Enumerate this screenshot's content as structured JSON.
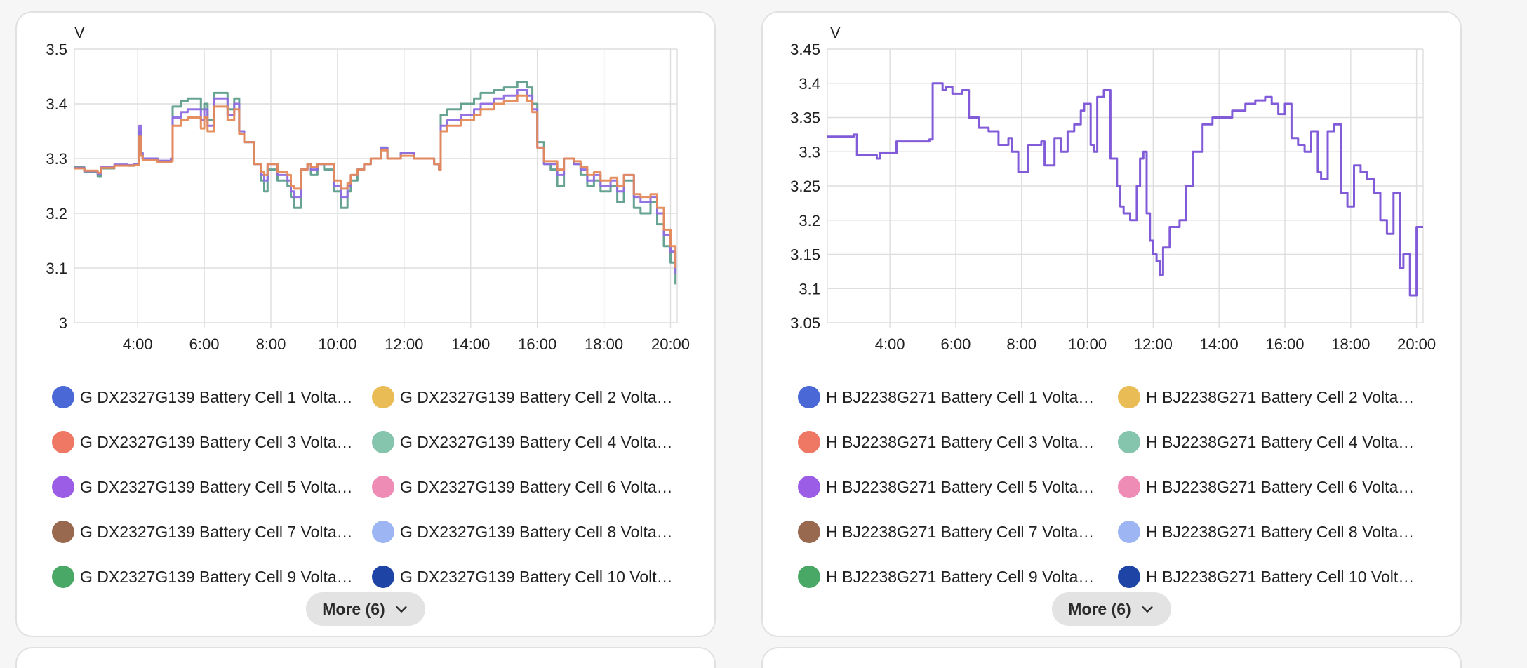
{
  "cards": [
    {
      "unit_label": "V",
      "more_button": "More (6)",
      "legend": [
        {
          "label": "G DX2327G139 Battery Cell 1 Volta…",
          "color": "#4a69d6"
        },
        {
          "label": "G DX2327G139 Battery Cell 2 Volta…",
          "color": "#eabc55"
        },
        {
          "label": "G DX2327G139 Battery Cell 3 Volta…",
          "color": "#ef7864"
        },
        {
          "label": "G DX2327G139 Battery Cell 4 Volta…",
          "color": "#85c4ad"
        },
        {
          "label": "G DX2327G139 Battery Cell 5 Volta…",
          "color": "#9b5de5"
        },
        {
          "label": "G DX2327G139 Battery Cell 6 Volta…",
          "color": "#ee8cb6"
        },
        {
          "label": "G DX2327G139 Battery Cell 7 Volta…",
          "color": "#98694e"
        },
        {
          "label": "G DX2327G139 Battery Cell 8 Volta…",
          "color": "#9db5f2"
        },
        {
          "label": "G DX2327G139 Battery Cell 9 Volta…",
          "color": "#4aa866"
        },
        {
          "label": "G DX2327G139 Battery Cell 10 Volt…",
          "color": "#1e44a6"
        }
      ]
    },
    {
      "unit_label": "V",
      "more_button": "More (6)",
      "legend": [
        {
          "label": "H BJ2238G271 Battery Cell 1 Volta…",
          "color": "#4a69d6"
        },
        {
          "label": "H BJ2238G271 Battery Cell 2 Volta…",
          "color": "#eabc55"
        },
        {
          "label": "H BJ2238G271 Battery Cell 3 Volta…",
          "color": "#ef7864"
        },
        {
          "label": "H BJ2238G271 Battery Cell 4 Volta…",
          "color": "#85c4ad"
        },
        {
          "label": "H BJ2238G271 Battery Cell 5 Volta…",
          "color": "#9b5de5"
        },
        {
          "label": "H BJ2238G271 Battery Cell 6 Volta…",
          "color": "#ee8cb6"
        },
        {
          "label": "H BJ2238G271 Battery Cell 7 Volta…",
          "color": "#98694e"
        },
        {
          "label": "H BJ2238G271 Battery Cell 8 Volta…",
          "color": "#9db5f2"
        },
        {
          "label": "H BJ2238G271 Battery Cell 9 Volta…",
          "color": "#4aa866"
        },
        {
          "label": "H BJ2238G271 Battery Cell 10 Volt…",
          "color": "#1e44a6"
        }
      ]
    }
  ],
  "chart_data": [
    {
      "type": "line",
      "ylabel": "V",
      "ylim": [
        3.0,
        3.5
      ],
      "yticks": [
        "3",
        "3.1",
        "3.2",
        "3.3",
        "3.4",
        "3.5"
      ],
      "xlim_hours": [
        2.1,
        20.2
      ],
      "xticks": [
        "4:00",
        "6:00",
        "8:00",
        "10:00",
        "12:00",
        "14:00",
        "16:00",
        "18:00",
        "20:00"
      ],
      "grid": true,
      "step": true,
      "series": [
        {
          "name": "G DX2327G139 Battery Cell 1 Volta…",
          "color": "#5f9e8c",
          "x": [
            2.1,
            2.4,
            2.8,
            2.9,
            3.3,
            3.7,
            3.9,
            4.05,
            4.1,
            4.15,
            4.6,
            5.0,
            5.05,
            5.3,
            5.5,
            5.9,
            6.0,
            6.1,
            6.3,
            6.6,
            6.7,
            6.9,
            7.05,
            7.2,
            7.5,
            7.7,
            7.8,
            7.9,
            8.2,
            8.5,
            8.6,
            8.7,
            8.9,
            9.1,
            9.2,
            9.4,
            9.6,
            9.9,
            10.1,
            10.3,
            10.4,
            10.6,
            10.8,
            11.0,
            11.3,
            11.5,
            11.7,
            11.9,
            12.3,
            12.6,
            12.9,
            13.05,
            13.1,
            13.3,
            13.7,
            14.1,
            14.3,
            14.7,
            15.0,
            15.4,
            15.7,
            15.85,
            16.0,
            16.2,
            16.4,
            16.6,
            16.8,
            17.1,
            17.3,
            17.5,
            17.7,
            17.9,
            18.2,
            18.4,
            18.6,
            18.9,
            19.1,
            19.4,
            19.6,
            19.8,
            20.0,
            20.15
          ],
          "y": [
            3.284,
            3.276,
            3.268,
            3.282,
            3.288,
            3.287,
            3.29,
            3.35,
            3.31,
            3.3,
            3.295,
            3.3,
            3.395,
            3.405,
            3.41,
            3.39,
            3.4,
            3.37,
            3.42,
            3.42,
            3.39,
            3.41,
            3.35,
            3.33,
            3.29,
            3.26,
            3.24,
            3.28,
            3.26,
            3.25,
            3.23,
            3.21,
            3.28,
            3.29,
            3.27,
            3.29,
            3.28,
            3.24,
            3.21,
            3.24,
            3.26,
            3.28,
            3.29,
            3.3,
            3.32,
            3.3,
            3.3,
            3.31,
            3.3,
            3.3,
            3.29,
            3.28,
            3.38,
            3.39,
            3.4,
            3.41,
            3.42,
            3.425,
            3.43,
            3.44,
            3.43,
            3.4,
            3.33,
            3.29,
            3.28,
            3.25,
            3.3,
            3.29,
            3.27,
            3.25,
            3.26,
            3.24,
            3.25,
            3.22,
            3.26,
            3.21,
            3.2,
            3.22,
            3.18,
            3.14,
            3.11,
            3.07
          ]
        },
        {
          "name": "G DX2327G139 Battery Cell 5 Volta…",
          "color": "#8e6be0",
          "x": [
            2.1,
            2.4,
            2.8,
            2.9,
            3.3,
            3.7,
            3.9,
            4.05,
            4.1,
            4.15,
            4.6,
            5.0,
            5.05,
            5.3,
            5.5,
            5.9,
            6.0,
            6.1,
            6.3,
            6.6,
            6.7,
            6.9,
            7.05,
            7.2,
            7.5,
            7.7,
            7.8,
            7.9,
            8.2,
            8.5,
            8.6,
            8.7,
            8.9,
            9.1,
            9.2,
            9.4,
            9.6,
            9.9,
            10.1,
            10.3,
            10.4,
            10.6,
            10.8,
            11.0,
            11.3,
            11.5,
            11.7,
            11.9,
            12.3,
            12.6,
            12.9,
            13.05,
            13.1,
            13.3,
            13.7,
            14.1,
            14.3,
            14.7,
            15.0,
            15.4,
            15.7,
            15.85,
            16.0,
            16.2,
            16.4,
            16.6,
            16.8,
            17.1,
            17.3,
            17.5,
            17.7,
            17.9,
            18.2,
            18.4,
            18.6,
            18.9,
            19.1,
            19.4,
            19.6,
            19.8,
            20.0,
            20.15
          ],
          "y": [
            3.283,
            3.277,
            3.272,
            3.284,
            3.289,
            3.288,
            3.29,
            3.36,
            3.31,
            3.3,
            3.296,
            3.3,
            3.375,
            3.385,
            3.39,
            3.37,
            3.39,
            3.36,
            3.41,
            3.41,
            3.38,
            3.4,
            3.35,
            3.33,
            3.29,
            3.27,
            3.26,
            3.29,
            3.27,
            3.26,
            3.24,
            3.23,
            3.28,
            3.29,
            3.28,
            3.29,
            3.29,
            3.25,
            3.23,
            3.25,
            3.27,
            3.28,
            3.29,
            3.3,
            3.32,
            3.3,
            3.3,
            3.31,
            3.3,
            3.3,
            3.29,
            3.28,
            3.36,
            3.37,
            3.38,
            3.39,
            3.4,
            3.41,
            3.415,
            3.425,
            3.415,
            3.39,
            3.32,
            3.29,
            3.29,
            3.27,
            3.3,
            3.29,
            3.28,
            3.26,
            3.27,
            3.25,
            3.26,
            3.24,
            3.27,
            3.23,
            3.22,
            3.23,
            3.2,
            3.16,
            3.13,
            3.09
          ]
        },
        {
          "name": "G DX2327G139 Battery Cell 3 Volta…",
          "color": "#e58a5a",
          "x": [
            2.1,
            2.4,
            2.8,
            2.9,
            3.3,
            3.7,
            3.9,
            4.05,
            4.1,
            4.15,
            4.6,
            5.0,
            5.05,
            5.3,
            5.5,
            5.9,
            6.0,
            6.1,
            6.3,
            6.6,
            6.7,
            6.9,
            7.05,
            7.2,
            7.5,
            7.7,
            7.8,
            7.9,
            8.2,
            8.5,
            8.6,
            8.7,
            8.9,
            9.1,
            9.2,
            9.4,
            9.6,
            9.9,
            10.1,
            10.3,
            10.4,
            10.6,
            10.8,
            11.0,
            11.3,
            11.5,
            11.7,
            11.9,
            12.3,
            12.6,
            12.9,
            13.05,
            13.1,
            13.3,
            13.7,
            14.1,
            14.3,
            14.7,
            15.0,
            15.4,
            15.7,
            15.85,
            16.0,
            16.2,
            16.4,
            16.6,
            16.8,
            17.1,
            17.3,
            17.5,
            17.7,
            17.9,
            18.2,
            18.4,
            18.6,
            18.9,
            19.1,
            19.4,
            19.6,
            19.8,
            20.0,
            20.15
          ],
          "y": [
            3.282,
            3.278,
            3.274,
            3.283,
            3.287,
            3.287,
            3.288,
            3.34,
            3.305,
            3.298,
            3.293,
            3.295,
            3.36,
            3.37,
            3.375,
            3.355,
            3.375,
            3.35,
            3.395,
            3.395,
            3.37,
            3.39,
            3.345,
            3.33,
            3.29,
            3.275,
            3.27,
            3.29,
            3.275,
            3.27,
            3.25,
            3.245,
            3.28,
            3.29,
            3.285,
            3.29,
            3.29,
            3.26,
            3.245,
            3.255,
            3.27,
            3.28,
            3.29,
            3.3,
            3.315,
            3.3,
            3.3,
            3.305,
            3.3,
            3.3,
            3.29,
            3.28,
            3.35,
            3.36,
            3.37,
            3.38,
            3.39,
            3.4,
            3.405,
            3.415,
            3.405,
            3.385,
            3.32,
            3.295,
            3.295,
            3.28,
            3.3,
            3.295,
            3.285,
            3.27,
            3.275,
            3.26,
            3.265,
            3.25,
            3.27,
            3.235,
            3.23,
            3.235,
            3.21,
            3.17,
            3.14,
            3.1
          ]
        }
      ]
    },
    {
      "type": "line",
      "ylabel": "V",
      "ylim": [
        3.05,
        3.45
      ],
      "yticks": [
        "3.05",
        "3.1",
        "3.15",
        "3.2",
        "3.25",
        "3.3",
        "3.35",
        "3.4",
        "3.45"
      ],
      "xlim_hours": [
        2.1,
        20.2
      ],
      "xticks": [
        "4:00",
        "6:00",
        "8:00",
        "10:00",
        "12:00",
        "14:00",
        "16:00",
        "18:00",
        "20:00"
      ],
      "grid": true,
      "step": true,
      "series": [
        {
          "name": "H BJ2238G271 Battery Cell 5 Volta…",
          "color": "#7a52d6",
          "x": [
            2.1,
            2.9,
            3.0,
            3.6,
            3.7,
            4.2,
            5.2,
            5.3,
            5.6,
            5.7,
            5.9,
            6.2,
            6.4,
            6.7,
            7.0,
            7.3,
            7.6,
            7.7,
            7.9,
            8.2,
            8.4,
            8.6,
            8.7,
            9.0,
            9.2,
            9.4,
            9.6,
            9.8,
            9.9,
            10.1,
            10.2,
            10.3,
            10.5,
            10.7,
            10.9,
            11.0,
            11.1,
            11.3,
            11.5,
            11.6,
            11.7,
            11.8,
            11.9,
            12.0,
            12.1,
            12.2,
            12.3,
            12.5,
            12.8,
            12.9,
            13.0,
            13.2,
            13.5,
            13.8,
            14.1,
            14.4,
            14.8,
            15.1,
            15.4,
            15.6,
            15.8,
            16.0,
            16.2,
            16.4,
            16.6,
            16.8,
            17.0,
            17.1,
            17.3,
            17.5,
            17.7,
            17.9,
            18.1,
            18.3,
            18.5,
            18.7,
            18.9,
            19.1,
            19.3,
            19.5,
            19.6,
            19.8,
            20.0,
            20.2
          ],
          "y": [
            3.322,
            3.325,
            3.295,
            3.29,
            3.298,
            3.315,
            3.318,
            3.4,
            3.39,
            3.395,
            3.385,
            3.39,
            3.35,
            3.335,
            3.33,
            3.31,
            3.32,
            3.3,
            3.27,
            3.31,
            3.31,
            3.315,
            3.28,
            3.32,
            3.3,
            3.33,
            3.34,
            3.36,
            3.37,
            3.31,
            3.3,
            3.38,
            3.39,
            3.29,
            3.25,
            3.22,
            3.21,
            3.2,
            3.25,
            3.29,
            3.3,
            3.21,
            3.17,
            3.15,
            3.14,
            3.12,
            3.16,
            3.19,
            3.2,
            3.2,
            3.25,
            3.3,
            3.34,
            3.35,
            3.35,
            3.36,
            3.37,
            3.375,
            3.38,
            3.37,
            3.355,
            3.37,
            3.32,
            3.31,
            3.3,
            3.33,
            3.27,
            3.26,
            3.33,
            3.34,
            3.24,
            3.22,
            3.28,
            3.27,
            3.26,
            3.24,
            3.2,
            3.18,
            3.24,
            3.13,
            3.15,
            3.09,
            3.19,
            3.19
          ]
        }
      ]
    }
  ]
}
